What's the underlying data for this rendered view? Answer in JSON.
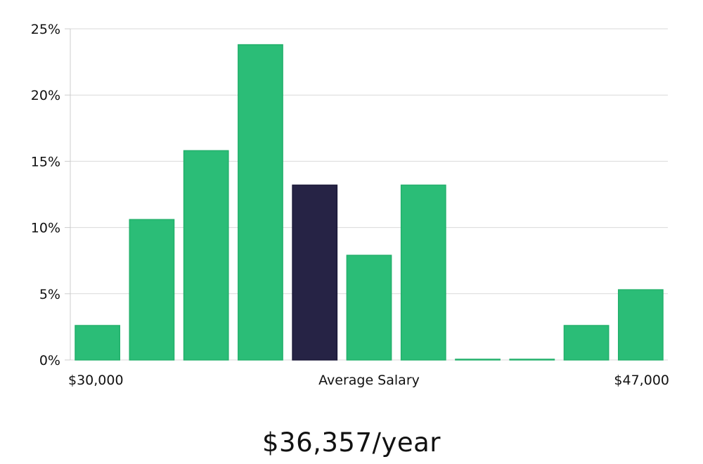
{
  "chart_data": {
    "type": "bar",
    "categories": [
      "$30,000",
      "",
      "",
      "",
      "",
      "",
      "",
      "",
      "",
      "",
      "$47,000"
    ],
    "values": [
      2.6,
      10.6,
      15.8,
      23.8,
      13.2,
      7.9,
      13.2,
      0,
      0,
      2.6,
      5.3
    ],
    "highlight_index": 4,
    "ylim": [
      0,
      25
    ],
    "yticks": [
      "0%",
      "5%",
      "10%",
      "15%",
      "20%",
      "25%"
    ],
    "ytick_values": [
      0,
      5,
      10,
      15,
      20,
      25
    ],
    "xlabel": "Average Salary",
    "x_min_label": "$30,000",
    "x_max_label": "$47,000",
    "grid": true,
    "colors": {
      "bar": "#2bbd77",
      "bar_stroke": "#22b06b",
      "highlight": "#262345",
      "grid": "#d9d9d9",
      "axis": "#cccccc"
    }
  },
  "summary": {
    "salary_text": "$36,357/year"
  }
}
